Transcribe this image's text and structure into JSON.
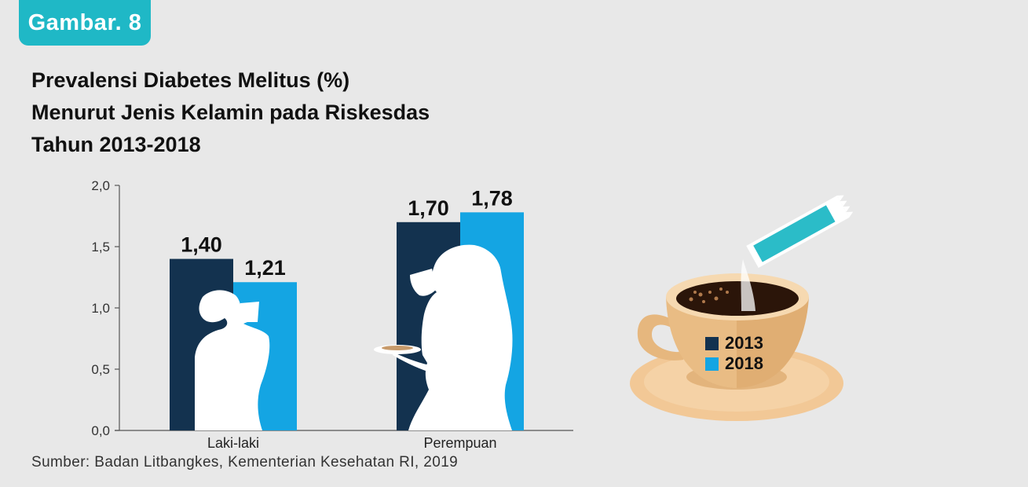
{
  "badge": "Gambar. 8",
  "title_lines": [
    "Prevalensi Diabetes Melitus (%)",
    "Menurut Jenis Kelamin pada Riskesdas",
    "Tahun 2013-2018"
  ],
  "source": "Sumber: Badan Litbangkes, Kementerian Kesehatan RI, 2019",
  "colors": {
    "series_2013": "#13324f",
    "series_2018": "#14a5e3",
    "badge": "#1fb8c6",
    "background": "#e8e8e8"
  },
  "chart_data": {
    "type": "bar",
    "title": "Prevalensi Diabetes Melitus (%) Menurut Jenis Kelamin pada Riskesdas Tahun 2013-2018",
    "categories": [
      "Laki-laki",
      "Perempuan"
    ],
    "series": [
      {
        "name": "2013",
        "values": [
          1.4,
          1.7
        ],
        "labels": [
          "1,40",
          "1,70"
        ]
      },
      {
        "name": "2018",
        "values": [
          1.21,
          1.78
        ],
        "labels": [
          "1,21",
          "1,78"
        ]
      }
    ],
    "ylim": [
      0,
      2.0
    ],
    "yticks": [
      0,
      0.5,
      1.0,
      1.5,
      2.0
    ],
    "ytick_labels": [
      "0,0",
      "0,5",
      "1,0",
      "1,5",
      "2,0"
    ],
    "xlabel": "",
    "ylabel": "",
    "grid": false,
    "legend_position": "right, on coffee cup"
  },
  "icons": [
    "man-drinking-silhouette-icon",
    "woman-drinking-silhouette-icon",
    "coffee-cup-sugar-icon"
  ]
}
